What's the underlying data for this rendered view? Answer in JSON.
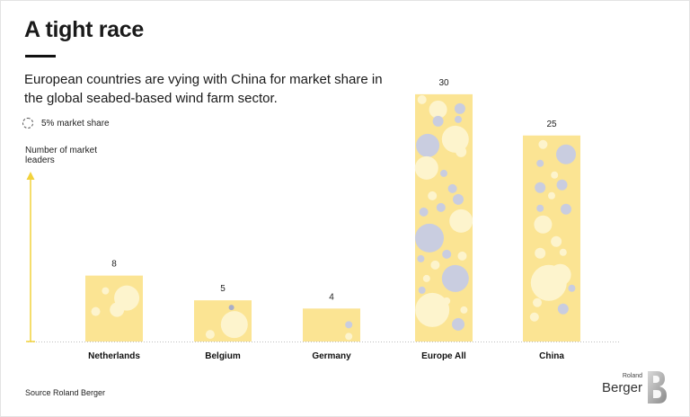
{
  "title": "A tight race",
  "subtitle": "European countries are vying with China for market share in the global seabed-based wind farm sector.",
  "legend": {
    "label": "5% market share"
  },
  "source": "Source Roland Berger",
  "logo": {
    "line1": "Roland",
    "line2": "Berger",
    "glyph": "B"
  },
  "colors": {
    "bar": "#fbe493",
    "bubble_light": "#fdf4cd",
    "bubble_blue": "#c9cde0",
    "bubble_blue_dark": "#a9aec7",
    "axis": "#f2d23c"
  },
  "chart_data": {
    "type": "bar",
    "title": "A tight race",
    "ylabel": "Number of market leaders",
    "categories": [
      "Netherlands",
      "Belgium",
      "Germany",
      "Europe All",
      "China"
    ],
    "values": [
      8,
      5,
      4,
      30,
      25
    ],
    "ylim": [
      0,
      30
    ],
    "grid": false,
    "data_labels": true
  }
}
